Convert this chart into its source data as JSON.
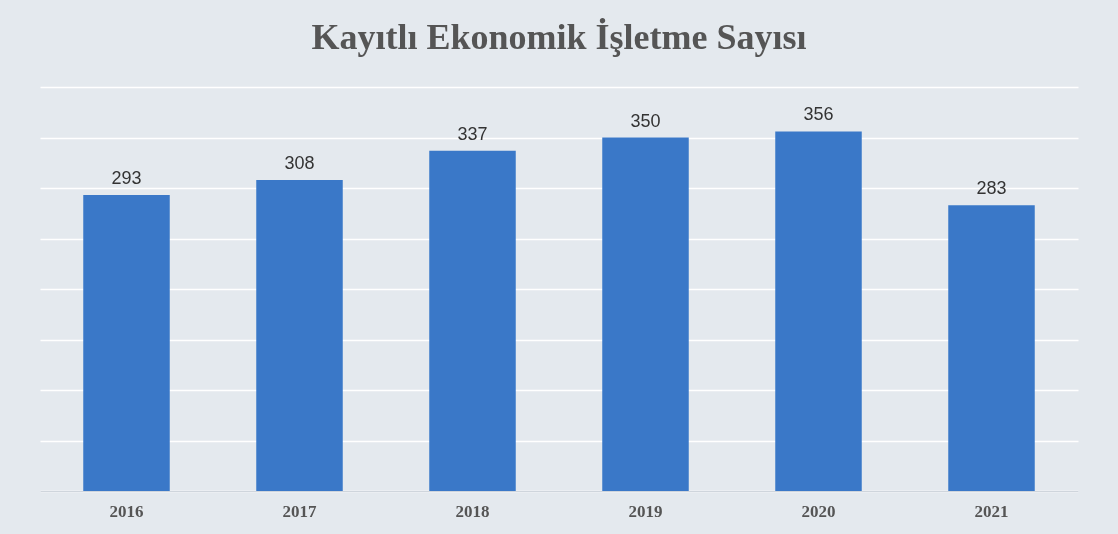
{
  "chart_data": {
    "type": "bar",
    "title": "Kayıtlı Ekonomik İşletme Sayısı",
    "categories": [
      "2016",
      "2017",
      "2018",
      "2019",
      "2020",
      "2021"
    ],
    "values": [
      293,
      308,
      337,
      350,
      356,
      283
    ],
    "color": "#3a78c8",
    "ylim": [
      0,
      400
    ],
    "yticks": [
      {
        "value": 0,
        "label": null
      },
      {
        "value": 50,
        "label": null
      },
      {
        "value": 100,
        "label": null
      },
      {
        "value": 150,
        "label": null
      },
      {
        "value": 200,
        "label": null
      },
      {
        "value": 250,
        "label": null
      },
      {
        "value": 300,
        "label": null
      },
      {
        "value": 350,
        "label": null
      },
      {
        "value": 400,
        "label": null
      }
    ],
    "grid": "y",
    "tick_labels": "x",
    "data_labels": true
  }
}
